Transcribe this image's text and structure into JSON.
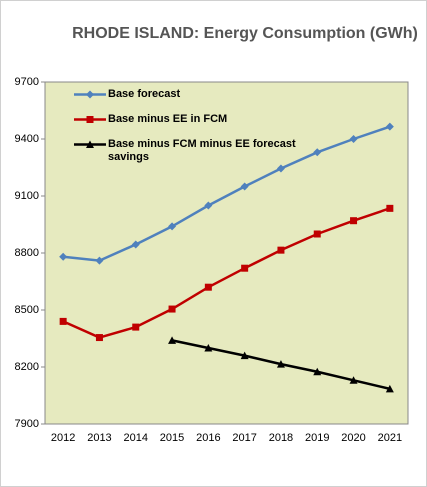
{
  "chart_data": {
    "type": "line",
    "title": "RHODE ISLAND: Energy Consumption (GWh)",
    "categories": [
      "2012",
      "2013",
      "2014",
      "2015",
      "2016",
      "2017",
      "2018",
      "2019",
      "2020",
      "2021"
    ],
    "series": [
      {
        "name": "Base forecast",
        "color": "#4f81bd",
        "marker": "diamond",
        "values": [
          8780,
          8760,
          8845,
          8940,
          9050,
          9150,
          9245,
          9330,
          9400,
          9465
        ]
      },
      {
        "name": "Base minus EE in FCM",
        "color": "#c00000",
        "marker": "square",
        "values": [
          8440,
          8355,
          8410,
          8505,
          8620,
          8720,
          8815,
          8900,
          8970,
          9035
        ]
      },
      {
        "name": "Base minus FCM minus EE forecast savings",
        "color": "#000000",
        "marker": "triangle",
        "values": [
          null,
          null,
          null,
          8340,
          8300,
          8260,
          8215,
          8175,
          8130,
          8085
        ]
      }
    ],
    "ylim": [
      7900,
      9700
    ],
    "yticks": [
      7900,
      8200,
      8500,
      8800,
      9100,
      9400,
      9700
    ],
    "grid": false,
    "legend": "top-left",
    "plot_background": "#e6eabf"
  }
}
